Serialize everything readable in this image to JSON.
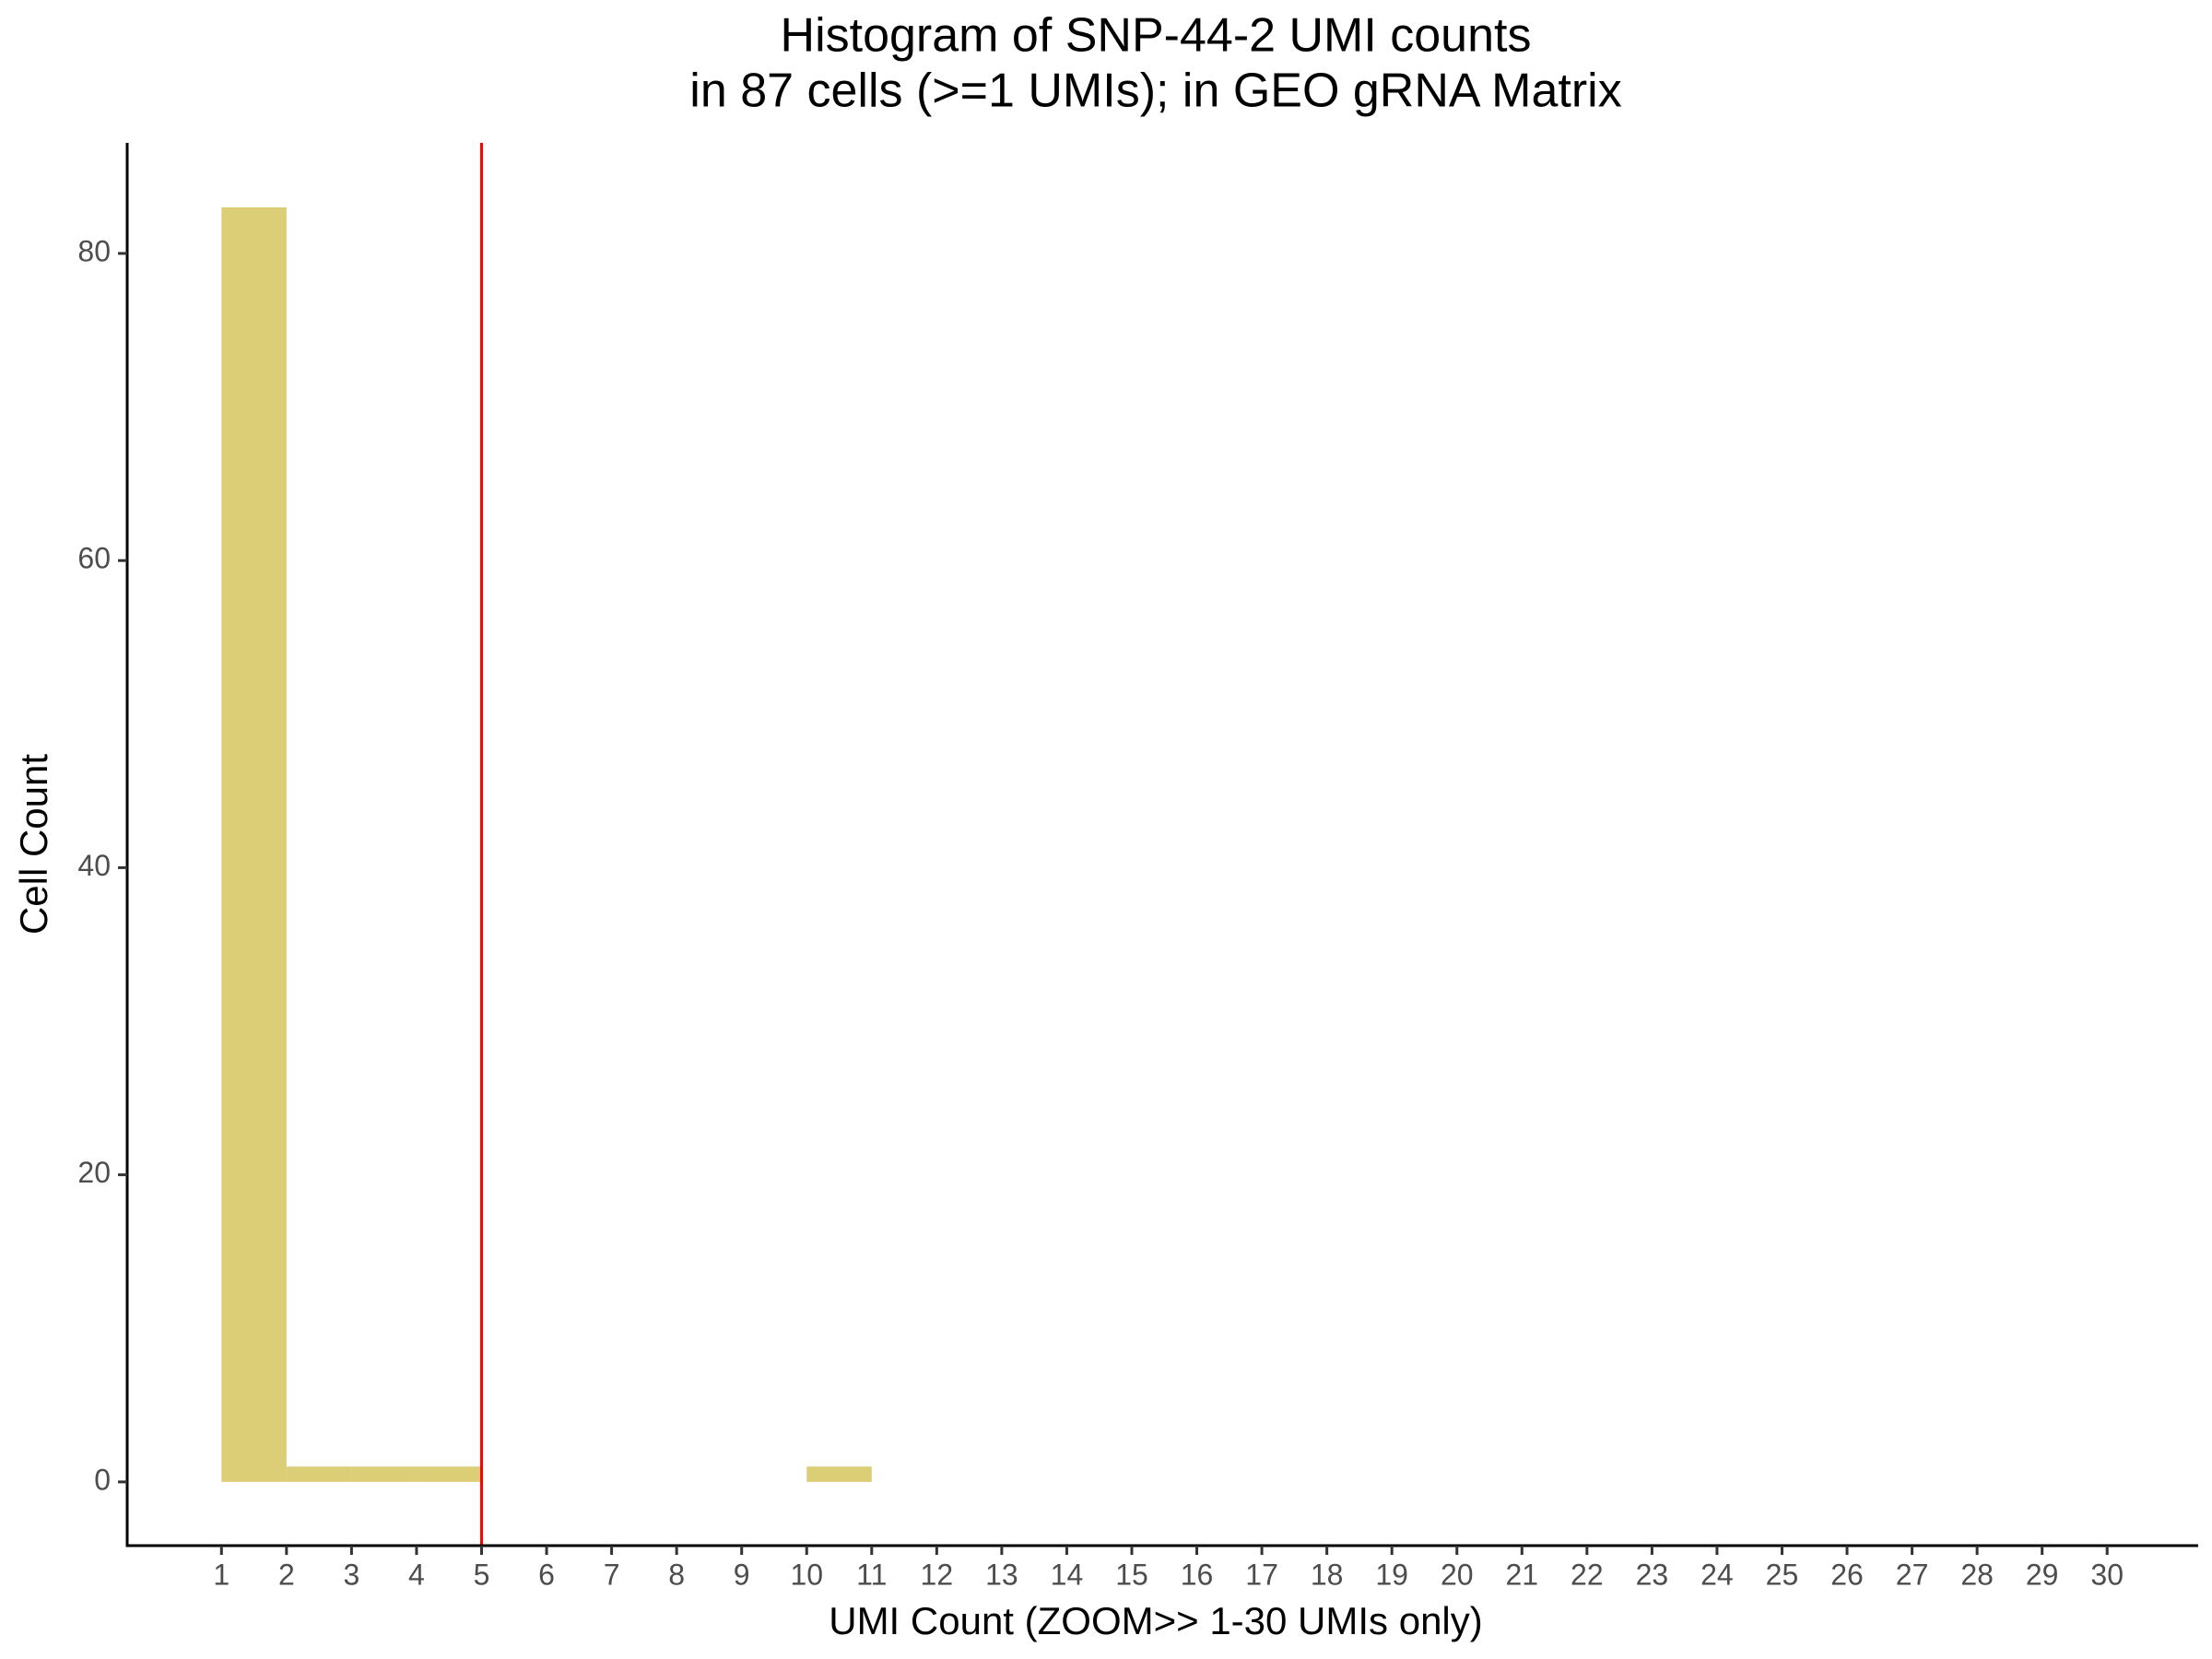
{
  "chart_data": {
    "type": "histogram",
    "title": [
      "Histogram of SNP-44-2 UMI counts",
      "in 87 cells (>=1 UMIs); in GEO gRNA Matrix"
    ],
    "xlabel": "UMI Count (ZOOM>> 1-30 UMIs only)",
    "ylabel": "Cell Count",
    "bins": [
      1,
      2,
      3,
      4,
      5,
      6,
      7,
      8,
      9,
      10,
      11,
      12,
      13,
      14,
      15,
      16,
      17,
      18,
      19,
      20,
      21,
      22,
      23,
      24,
      25,
      26,
      27,
      28,
      29,
      30
    ],
    "values": [
      83,
      1,
      1,
      1,
      0,
      0,
      0,
      0,
      0,
      1,
      0,
      0,
      0,
      0,
      0,
      0,
      0,
      0,
      0,
      0,
      0,
      0,
      0,
      0,
      0,
      0,
      0,
      0,
      0
    ],
    "color": "#dccd77",
    "vline": 5,
    "vline_color": "#ff0000",
    "xlim": [
      -0.45,
      31.4
    ],
    "xticks": [
      1,
      2,
      3,
      4,
      5,
      6,
      7,
      8,
      9,
      10,
      11,
      12,
      13,
      14,
      15,
      16,
      17,
      18,
      19,
      20,
      21,
      22,
      23,
      24,
      25,
      26,
      27,
      28,
      29,
      30
    ],
    "ylim": [
      -4.15,
      87.2
    ],
    "yticks": [
      0,
      20,
      40,
      60,
      80
    ],
    "grid": false
  }
}
